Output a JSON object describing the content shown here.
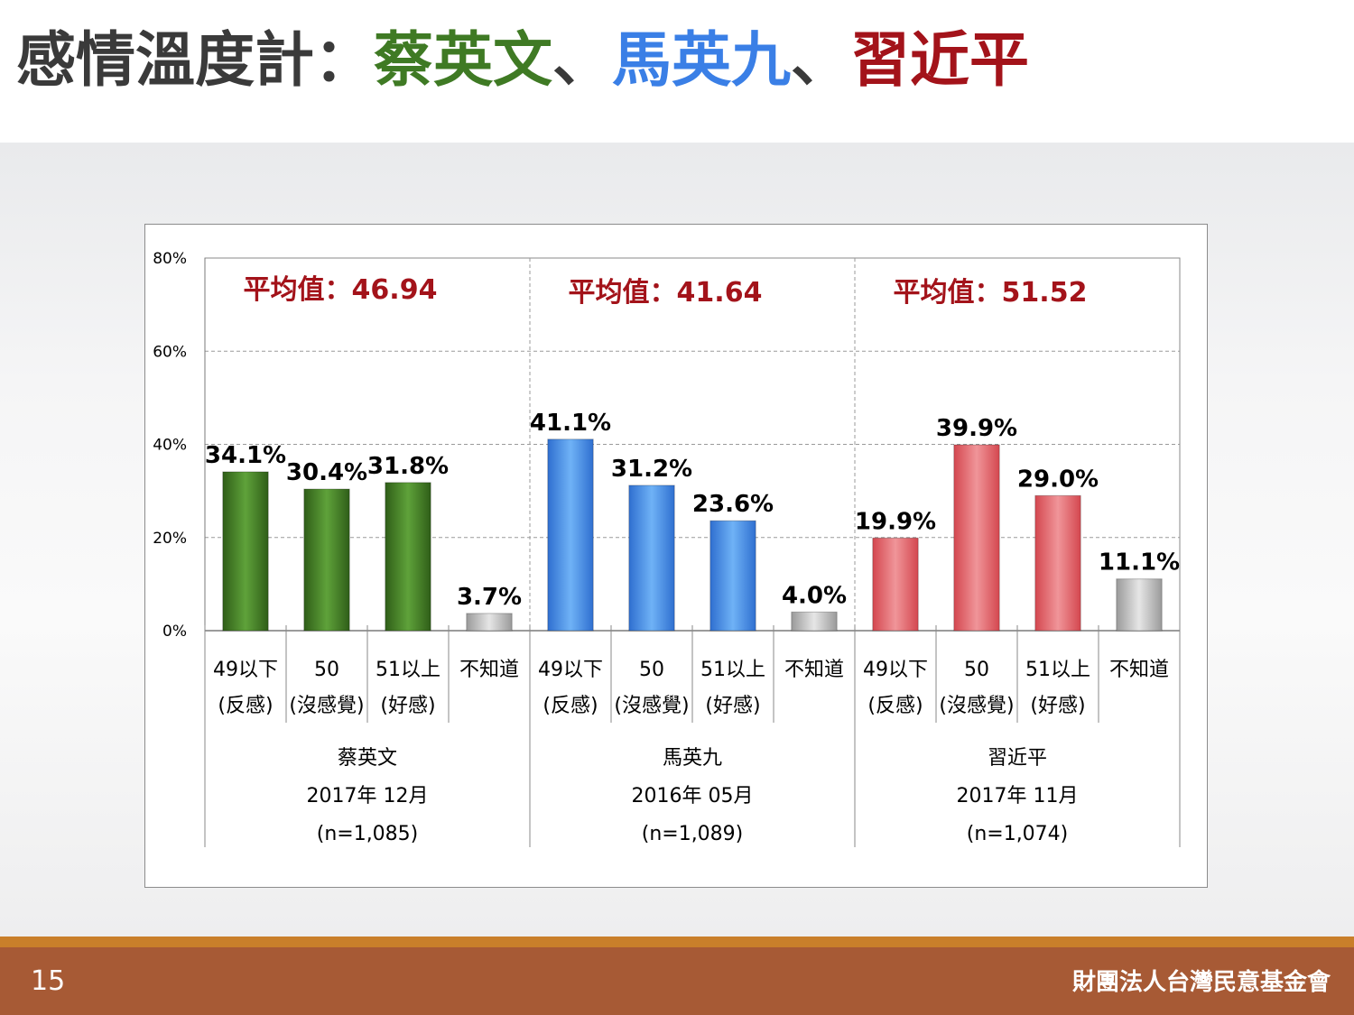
{
  "header": {
    "title_prefix": "感情溫度計：",
    "name1": "蔡英文",
    "sep1": "、",
    "name2": "馬英九",
    "sep2": "、",
    "name3": "習近平"
  },
  "footer": {
    "page_number": "15",
    "organization": "財團法人台灣民意基金會"
  },
  "colors": {
    "green": "#3f7a24",
    "blue": "#3a7fe6",
    "red": "#a3131a",
    "gray": "#b8b8b8"
  },
  "chart_data": {
    "type": "bar",
    "ylim": [
      0,
      80
    ],
    "yticks": [
      "0%",
      "20%",
      "40%",
      "60%",
      "80%"
    ],
    "grid": true,
    "groups": [
      {
        "name": "蔡英文",
        "date": "2017年 12月",
        "n": "(n=1,085)",
        "average_label": "平均值：46.94",
        "color": "green",
        "categories": [
          [
            "49以下",
            "(反感)"
          ],
          [
            "50",
            "(沒感覺)"
          ],
          [
            "51以上",
            "(好感)"
          ],
          [
            "不知道",
            ""
          ]
        ],
        "values": [
          34.1,
          30.4,
          31.8,
          3.7
        ],
        "labels": [
          "34.1%",
          "30.4%",
          "31.8%",
          "3.7%"
        ]
      },
      {
        "name": "馬英九",
        "date": "2016年 05月",
        "n": "(n=1,089)",
        "average_label": "平均值：41.64",
        "color": "blue",
        "categories": [
          [
            "49以下",
            "(反感)"
          ],
          [
            "50",
            "(沒感覺)"
          ],
          [
            "51以上",
            "(好感)"
          ],
          [
            "不知道",
            ""
          ]
        ],
        "values": [
          41.1,
          31.2,
          23.6,
          4.0
        ],
        "labels": [
          "41.1%",
          "31.2%",
          "23.6%",
          "4.0%"
        ]
      },
      {
        "name": "習近平",
        "date": "2017年 11月",
        "n": "(n=1,074)",
        "average_label": "平均值：51.52",
        "color": "red",
        "categories": [
          [
            "49以下",
            "(反感)"
          ],
          [
            "50",
            "(沒感覺)"
          ],
          [
            "51以上",
            "(好感)"
          ],
          [
            "不知道",
            ""
          ]
        ],
        "values": [
          19.9,
          39.9,
          29.0,
          11.1
        ],
        "labels": [
          "19.9%",
          "39.9%",
          "29.0%",
          "11.1%"
        ]
      }
    ]
  }
}
